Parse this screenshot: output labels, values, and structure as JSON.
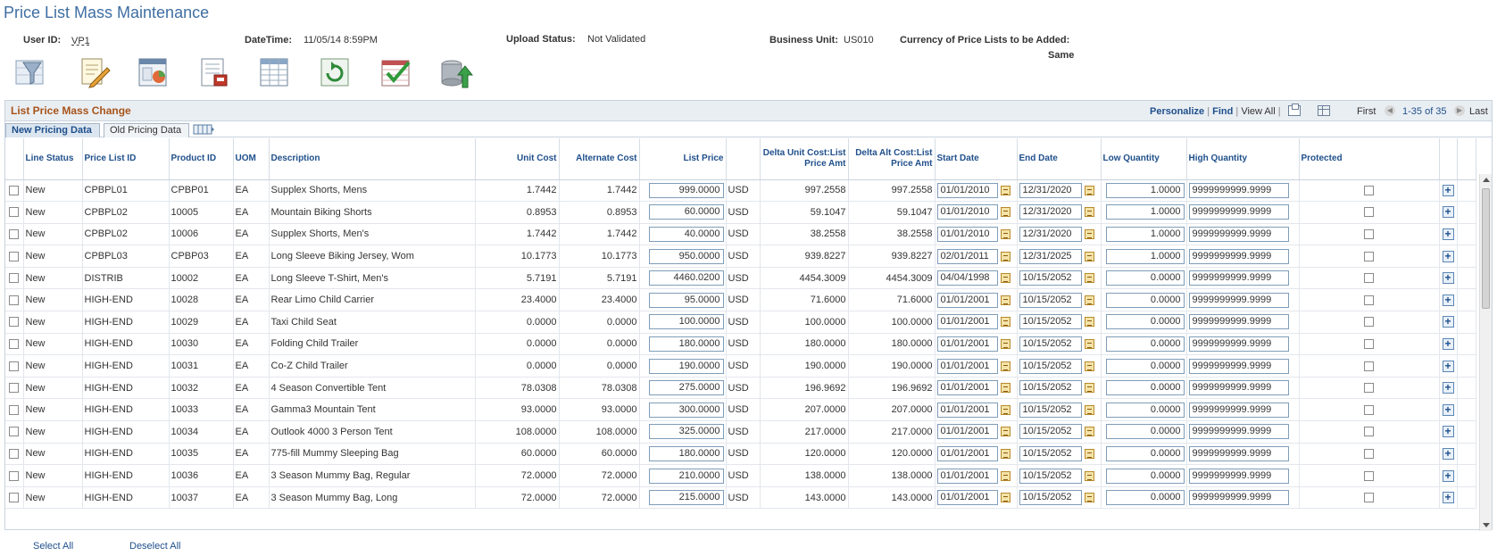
{
  "page": {
    "title": "Price List Mass Maintenance"
  },
  "header": {
    "user_id_label": "User ID:",
    "user_id": "VP1",
    "datetime_label": "DateTime:",
    "datetime": "11/05/14  8:59PM",
    "upload_status_label": "Upload Status:",
    "upload_status": "Not Validated",
    "business_unit_label": "Business Unit:",
    "business_unit": "US010",
    "currency_label": "Currency of Price Lists to be Added:",
    "currency": "Same"
  },
  "toolbar": {
    "icons": [
      "filter-icon",
      "edit-document-icon",
      "chart-report-icon",
      "document-print-icon",
      "spreadsheet-grid-icon",
      "refresh-icon",
      "validate-check-icon",
      "upload-icon"
    ]
  },
  "grid": {
    "title": "List Price Mass Change",
    "nav": {
      "personalize": "Personalize",
      "find": "Find",
      "view_all": "View All",
      "first": "First",
      "range": "1-35 of 35",
      "last": "Last"
    },
    "tabs": [
      "New Pricing Data",
      "Old Pricing Data"
    ],
    "headers": [
      "",
      "Line Status",
      "Price List ID",
      "Product ID",
      "UOM",
      "Description",
      "Unit Cost",
      "Alternate Cost",
      "List Price",
      "",
      "Delta Unit Cost:List Price Amt",
      "Delta Alt Cost:List Price Amt",
      "Start Date",
      "End Date",
      "Low Quantity",
      "High Quantity",
      "Protected",
      "",
      ""
    ],
    "rows": [
      {
        "status": "New",
        "price_list": "CPBPL01",
        "product": "CPBP01",
        "uom": "EA",
        "desc": "Supplex Shorts, Mens",
        "unit_cost": "1.7442",
        "alt_cost": "1.7442",
        "list_price": "999.0000",
        "currency": "USD",
        "delta_unit": "997.2558",
        "delta_alt": "997.2558",
        "start": "01/01/2010",
        "end": "12/31/2020",
        "low": "1.0000",
        "high": "9999999999.9999"
      },
      {
        "status": "New",
        "price_list": "CPBPL02",
        "product": "10005",
        "uom": "EA",
        "desc": "Mountain Biking Shorts",
        "unit_cost": "0.8953",
        "alt_cost": "0.8953",
        "list_price": "60.0000",
        "currency": "USD",
        "delta_unit": "59.1047",
        "delta_alt": "59.1047",
        "start": "01/01/2010",
        "end": "12/31/2020",
        "low": "1.0000",
        "high": "9999999999.9999"
      },
      {
        "status": "New",
        "price_list": "CPBPL02",
        "product": "10006",
        "uom": "EA",
        "desc": "Supplex Shorts, Men's",
        "unit_cost": "1.7442",
        "alt_cost": "1.7442",
        "list_price": "40.0000",
        "currency": "USD",
        "delta_unit": "38.2558",
        "delta_alt": "38.2558",
        "start": "01/01/2010",
        "end": "12/31/2020",
        "low": "1.0000",
        "high": "9999999999.9999"
      },
      {
        "status": "New",
        "price_list": "CPBPL03",
        "product": "CPBP03",
        "uom": "EA",
        "desc": "Long Sleeve Biking Jersey, Wom",
        "unit_cost": "10.1773",
        "alt_cost": "10.1773",
        "list_price": "950.0000",
        "currency": "USD",
        "delta_unit": "939.8227",
        "delta_alt": "939.8227",
        "start": "02/01/2011",
        "end": "12/31/2025",
        "low": "1.0000",
        "high": "9999999999.9999"
      },
      {
        "status": "New",
        "price_list": "DISTRIB",
        "product": "10002",
        "uom": "EA",
        "desc": "Long Sleeve T-Shirt, Men's",
        "unit_cost": "5.7191",
        "alt_cost": "5.7191",
        "list_price": "4460.0200",
        "currency": "USD",
        "delta_unit": "4454.3009",
        "delta_alt": "4454.3009",
        "start": "04/04/1998",
        "end": "10/15/2052",
        "low": "0.0000",
        "high": "9999999999.9999"
      },
      {
        "status": "New",
        "price_list": "HIGH-END",
        "product": "10028",
        "uom": "EA",
        "desc": "Rear Limo Child Carrier",
        "unit_cost": "23.4000",
        "alt_cost": "23.4000",
        "list_price": "95.0000",
        "currency": "USD",
        "delta_unit": "71.6000",
        "delta_alt": "71.6000",
        "start": "01/01/2001",
        "end": "10/15/2052",
        "low": "0.0000",
        "high": "9999999999.9999"
      },
      {
        "status": "New",
        "price_list": "HIGH-END",
        "product": "10029",
        "uom": "EA",
        "desc": "Taxi Child Seat",
        "unit_cost": "0.0000",
        "alt_cost": "0.0000",
        "list_price": "100.0000",
        "currency": "USD",
        "delta_unit": "100.0000",
        "delta_alt": "100.0000",
        "start": "01/01/2001",
        "end": "10/15/2052",
        "low": "0.0000",
        "high": "9999999999.9999"
      },
      {
        "status": "New",
        "price_list": "HIGH-END",
        "product": "10030",
        "uom": "EA",
        "desc": "Folding Child Trailer",
        "unit_cost": "0.0000",
        "alt_cost": "0.0000",
        "list_price": "180.0000",
        "currency": "USD",
        "delta_unit": "180.0000",
        "delta_alt": "180.0000",
        "start": "01/01/2001",
        "end": "10/15/2052",
        "low": "0.0000",
        "high": "9999999999.9999"
      },
      {
        "status": "New",
        "price_list": "HIGH-END",
        "product": "10031",
        "uom": "EA",
        "desc": "Co-Z Child Trailer",
        "unit_cost": "0.0000",
        "alt_cost": "0.0000",
        "list_price": "190.0000",
        "currency": "USD",
        "delta_unit": "190.0000",
        "delta_alt": "190.0000",
        "start": "01/01/2001",
        "end": "10/15/2052",
        "low": "0.0000",
        "high": "9999999999.9999"
      },
      {
        "status": "New",
        "price_list": "HIGH-END",
        "product": "10032",
        "uom": "EA",
        "desc": "4 Season Convertible Tent",
        "unit_cost": "78.0308",
        "alt_cost": "78.0308",
        "list_price": "275.0000",
        "currency": "USD",
        "delta_unit": "196.9692",
        "delta_alt": "196.9692",
        "start": "01/01/2001",
        "end": "10/15/2052",
        "low": "0.0000",
        "high": "9999999999.9999"
      },
      {
        "status": "New",
        "price_list": "HIGH-END",
        "product": "10033",
        "uom": "EA",
        "desc": "Gamma3 Mountain Tent",
        "unit_cost": "93.0000",
        "alt_cost": "93.0000",
        "list_price": "300.0000",
        "currency": "USD",
        "delta_unit": "207.0000",
        "delta_alt": "207.0000",
        "start": "01/01/2001",
        "end": "10/15/2052",
        "low": "0.0000",
        "high": "9999999999.9999"
      },
      {
        "status": "New",
        "price_list": "HIGH-END",
        "product": "10034",
        "uom": "EA",
        "desc": "Outlook 4000 3 Person Tent",
        "unit_cost": "108.0000",
        "alt_cost": "108.0000",
        "list_price": "325.0000",
        "currency": "USD",
        "delta_unit": "217.0000",
        "delta_alt": "217.0000",
        "start": "01/01/2001",
        "end": "10/15/2052",
        "low": "0.0000",
        "high": "9999999999.9999"
      },
      {
        "status": "New",
        "price_list": "HIGH-END",
        "product": "10035",
        "uom": "EA",
        "desc": "775-fill Mummy Sleeping Bag",
        "unit_cost": "60.0000",
        "alt_cost": "60.0000",
        "list_price": "180.0000",
        "currency": "USD",
        "delta_unit": "120.0000",
        "delta_alt": "120.0000",
        "start": "01/01/2001",
        "end": "10/15/2052",
        "low": "0.0000",
        "high": "9999999999.9999"
      },
      {
        "status": "New",
        "price_list": "HIGH-END",
        "product": "10036",
        "uom": "EA",
        "desc": "3 Season Mummy Bag, Regular",
        "unit_cost": "72.0000",
        "alt_cost": "72.0000",
        "list_price": "210.0000",
        "currency": "USD",
        "delta_unit": "138.0000",
        "delta_alt": "138.0000",
        "start": "01/01/2001",
        "end": "10/15/2052",
        "low": "0.0000",
        "high": "9999999999.9999"
      },
      {
        "status": "New",
        "price_list": "HIGH-END",
        "product": "10037",
        "uom": "EA",
        "desc": "3 Season Mummy Bag, Long",
        "unit_cost": "72.0000",
        "alt_cost": "72.0000",
        "list_price": "215.0000",
        "currency": "USD",
        "delta_unit": "143.0000",
        "delta_alt": "143.0000",
        "start": "01/01/2001",
        "end": "10/15/2052",
        "low": "0.0000",
        "high": "9999999999.9999"
      }
    ]
  },
  "footer": {
    "select_all": "Select All",
    "deselect_all": "Deselect All"
  },
  "colors": {
    "title_blue": "#3f6ea3",
    "grid_title_orange": "#a7541a",
    "link_blue": "#1f4f8b"
  }
}
